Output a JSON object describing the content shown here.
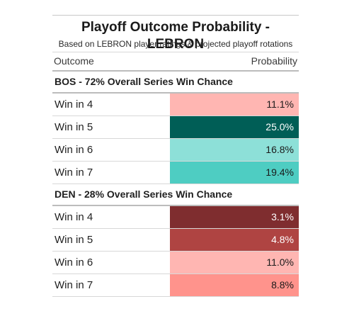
{
  "title": "Playoff Outcome Probability - LEBRON",
  "subtitle": "Based on LEBRON player ratings & projected playoff rotations",
  "columns": {
    "outcome": "Outcome",
    "probability": "Probability"
  },
  "chart_data": {
    "type": "table",
    "title": "Playoff Outcome Probability - LEBRON",
    "subtitle": "Based on LEBRON player ratings & projected playoff rotations",
    "columns": [
      "Outcome",
      "Probability"
    ],
    "groups": [
      {
        "header": "BOS - 72% Overall Series Win Chance",
        "rows": [
          {
            "outcome": "Win in 4",
            "label": "11.1%",
            "value": 11.1,
            "color": "#FFB6B2",
            "text_color": "#1a1a1a"
          },
          {
            "outcome": "Win in 5",
            "label": "25.0%",
            "value": 25.0,
            "color": "#005E56",
            "text_color": "#ffffff"
          },
          {
            "outcome": "Win in 6",
            "label": "16.8%",
            "value": 16.8,
            "color": "#8DE0D8",
            "text_color": "#1a1a1a"
          },
          {
            "outcome": "Win in 7",
            "label": "19.4%",
            "value": 19.4,
            "color": "#4ECDC2",
            "text_color": "#1a1a1a"
          }
        ]
      },
      {
        "header": "DEN - 28% Overall Series Win Chance",
        "rows": [
          {
            "outcome": "Win in 4",
            "label": "3.1%",
            "value": 3.1,
            "color": "#7F2D2F",
            "text_color": "#ffffff"
          },
          {
            "outcome": "Win in 5",
            "label": "4.8%",
            "value": 4.8,
            "color": "#AF4442",
            "text_color": "#ffffff"
          },
          {
            "outcome": "Win in 6",
            "label": "11.0%",
            "value": 11.0,
            "color": "#FFB6B2",
            "text_color": "#1a1a1a"
          },
          {
            "outcome": "Win in 7",
            "label": "8.8%",
            "value": 8.8,
            "color": "#FF938C",
            "text_color": "#1a1a1a"
          }
        ]
      }
    ]
  }
}
